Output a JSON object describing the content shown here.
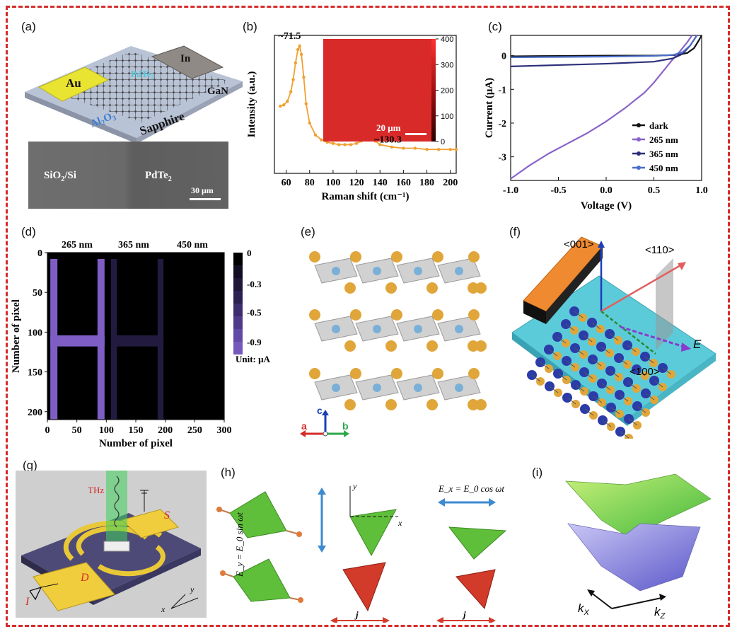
{
  "panels": {
    "a": {
      "letter": "(a)",
      "labels": {
        "au": "Au",
        "pdte2": "PdTe",
        "pdte2_sub": "2",
        "in": "In",
        "gan": "GaN",
        "al2o3_a": "Al",
        "al2o3_sub1": "2",
        "al2o3_b": "O",
        "al2o3_sub2": "3",
        "sapphire": "Sapphire"
      },
      "sem": {
        "left_a": "SiO",
        "left_sub": "2",
        "left_b": "/Si",
        "right": "PdTe",
        "right_sub": "2",
        "scale": "30 μm"
      }
    },
    "b": {
      "letter": "(b)",
      "peak1": "~71.5",
      "peak2": "~130.3",
      "inset_scale": "20 μm"
    },
    "c": {
      "letter": "(c)"
    },
    "d": {
      "letter": "(d)",
      "unit": "Unit: μA"
    },
    "e": {
      "letter": "(e)",
      "axes": {
        "a": "a",
        "b": "b",
        "c": "c"
      }
    },
    "f": {
      "letter": "(f)",
      "labels": {
        "d001": "<001>",
        "d110": "<110>",
        "d100": "<100>",
        "e": "E"
      }
    },
    "g": {
      "letter": "(g)",
      "labels": {
        "thz": "THz",
        "s": "S",
        "d": "D",
        "i": "I",
        "x": "x",
        "y": "y"
      }
    },
    "h": {
      "letter": "(h)",
      "eq_y": "E_y = E_0 sin ωt",
      "eq_x": "E_x = E_0 cos ωt",
      "labels": {
        "x": "x",
        "y": "y",
        "j1": "j",
        "j2": "j"
      }
    },
    "i": {
      "letter": "(i)",
      "labels": {
        "kx": "k",
        "kx_sub": "X",
        "kz": "k",
        "kz_sub": "Z"
      }
    }
  },
  "chart_data": [
    {
      "type": "line",
      "panel": "b",
      "xlabel": "Raman shift (cm⁻¹)",
      "ylabel": "Intensity (a.u.)",
      "xlim": [
        50,
        205
      ],
      "xticks": [
        60,
        80,
        100,
        120,
        140,
        160,
        180,
        200
      ],
      "series": [
        {
          "x": [
            55,
            58,
            61,
            64,
            66,
            68,
            70,
            71.5,
            73,
            75,
            77,
            80,
            85,
            90,
            95,
            100,
            105,
            110,
            115,
            120,
            124,
            127,
            130.3,
            133,
            136,
            140,
            150,
            160,
            170,
            180,
            190,
            200,
            205
          ],
          "y": [
            0.5,
            0.51,
            0.54,
            0.62,
            0.72,
            0.86,
            0.97,
            1.0,
            0.93,
            0.74,
            0.52,
            0.36,
            0.26,
            0.22,
            0.2,
            0.19,
            0.18,
            0.18,
            0.18,
            0.19,
            0.21,
            0.25,
            0.29,
            0.25,
            0.21,
            0.18,
            0.16,
            0.15,
            0.15,
            0.14,
            0.14,
            0.14,
            0.14
          ]
        }
      ],
      "colorbar": {
        "ticks": [
          0,
          100,
          200,
          300,
          400
        ],
        "range": [
          0,
          400
        ]
      },
      "color": "#f0a030"
    },
    {
      "type": "line",
      "panel": "c",
      "xlabel": "Voltage (V)",
      "ylabel": "Current (μA)",
      "xlim": [
        -1.0,
        1.0
      ],
      "ylim": [
        -3.7,
        0.6
      ],
      "xticks": [
        -1.0,
        -0.5,
        0.0,
        0.5,
        1.0
      ],
      "yticks": [
        0,
        -1,
        -2,
        -3
      ],
      "legend_position": "bottom-right",
      "series": [
        {
          "name": "dark",
          "color": "#111111",
          "x": [
            -1.0,
            -0.5,
            0.0,
            0.5,
            0.75,
            0.85,
            0.92,
            0.97,
            1.0
          ],
          "y": [
            -0.02,
            -0.01,
            0.0,
            0.0,
            0.02,
            0.08,
            0.22,
            0.45,
            0.6
          ]
        },
        {
          "name": "265 nm",
          "color": "#8a63c9",
          "x": [
            -1.0,
            -0.8,
            -0.6,
            -0.4,
            -0.2,
            0.0,
            0.2,
            0.4,
            0.5,
            0.6,
            0.7,
            0.78,
            0.85,
            0.9
          ],
          "y": [
            -3.65,
            -3.25,
            -2.9,
            -2.6,
            -2.3,
            -1.95,
            -1.55,
            -1.1,
            -0.8,
            -0.45,
            -0.1,
            0.15,
            0.4,
            0.6
          ]
        },
        {
          "name": "365 nm",
          "color": "#2d2f7a",
          "x": [
            -1.0,
            -0.5,
            0.0,
            0.5,
            0.7,
            0.8,
            0.88,
            0.95
          ],
          "y": [
            -0.32,
            -0.28,
            -0.24,
            -0.18,
            -0.08,
            0.05,
            0.3,
            0.6
          ]
        },
        {
          "name": "450 nm",
          "color": "#4a6ec9",
          "x": [
            -1.0,
            -0.5,
            0.0,
            0.5,
            0.7,
            0.8,
            0.88,
            0.95
          ],
          "y": [
            -0.05,
            -0.04,
            -0.03,
            -0.01,
            0.02,
            0.1,
            0.3,
            0.6
          ]
        }
      ]
    },
    {
      "type": "heatmap",
      "panel": "d",
      "xlabel": "Number of pixel",
      "ylabel": "Number of pixel",
      "xlim": [
        0,
        300
      ],
      "ylim": [
        0,
        210
      ],
      "xticks": [
        0,
        50,
        100,
        150,
        200,
        250,
        300
      ],
      "yticks": [
        0,
        50,
        100,
        150,
        200
      ],
      "column_labels": [
        "265 nm",
        "365 nm",
        "450 nm"
      ],
      "colorbar": {
        "ticks": [
          "0",
          "-0.3",
          "-0.5",
          "-0.9"
        ]
      },
      "patterns": [
        {
          "label": "265 nm",
          "color": "#7e5ec4",
          "rects": [
            [
              5,
              8,
              17,
              210
            ],
            [
              85,
              8,
              97,
              210
            ],
            [
              5,
              104,
              97,
              118
            ]
          ]
        },
        {
          "label": "365 nm",
          "color": "#231a40",
          "rects": [
            [
              108,
              8,
              118,
              210
            ],
            [
              187,
              8,
              197,
              210
            ],
            [
              108,
              104,
              197,
              118
            ]
          ]
        }
      ]
    }
  ]
}
